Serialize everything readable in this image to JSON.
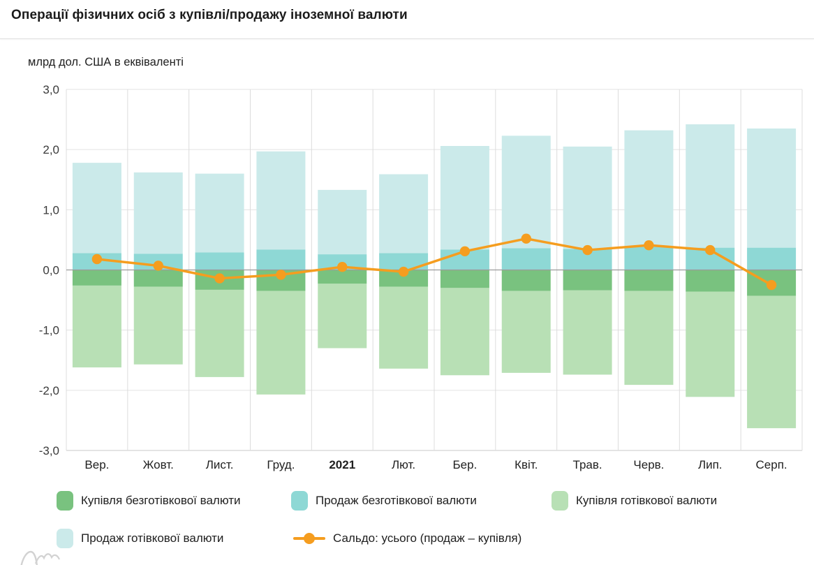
{
  "header": {
    "title": "Операції фізичних осіб з купівлі/продажу іноземної валюти"
  },
  "y_axis_note": "млрд дол. США в еквіваленті",
  "legend": {
    "items": [
      {
        "label": "Купівля безготівкової валюти",
        "color": "#79c27f",
        "marker": "swatch"
      },
      {
        "label": "Продаж безготівкової валюти",
        "color": "#8ed8d5",
        "marker": "swatch"
      },
      {
        "label": "Купівля готівкової валюти",
        "color": "#b8e0b5",
        "marker": "swatch"
      },
      {
        "label": "Продаж готівкової валюти",
        "color": "#cbeaea",
        "marker": "swatch"
      },
      {
        "label": "Сальдо: усього (продаж – купівля)",
        "color": "#f59d1f",
        "marker": "line-dot"
      }
    ]
  },
  "chart_data": {
    "type": "bar",
    "subtype": "stacked-diverging-with-line-overlay",
    "title": "Операції фізичних осіб з купівлі/продажу іноземної валюти",
    "ylabel": "млрд дол. США в еквіваленті",
    "xlabel": "",
    "grid": true,
    "legend_position": "bottom",
    "ylim": [
      -3,
      3
    ],
    "y_tick_values": [
      3,
      2,
      1,
      0,
      -1,
      -2,
      -3
    ],
    "y_tick_labels": [
      "3,0",
      "2,0",
      "1,0",
      "0,0",
      "-1,0",
      "-2,0",
      "-3,0"
    ],
    "categories": [
      "Вер.",
      "Жовт.",
      "Лист.",
      "Груд.",
      "2021",
      "Лют.",
      "Бер.",
      "Квіт.",
      "Трав.",
      "Черв.",
      "Лип.",
      "Серп."
    ],
    "emphasized_category": "2021",
    "series": [
      {
        "name": "Продаж безготівкової валюти",
        "type": "bar",
        "direction": "up",
        "stack_order": 1,
        "color": "#8ed8d5",
        "values": [
          0.28,
          0.27,
          0.29,
          0.34,
          0.26,
          0.28,
          0.34,
          0.36,
          0.35,
          0.39,
          0.37,
          0.37
        ]
      },
      {
        "name": "Продаж готівкової валюти",
        "type": "bar",
        "direction": "up",
        "stack_order": 2,
        "color": "#cbeaea",
        "values": [
          1.5,
          1.35,
          1.31,
          1.63,
          1.07,
          1.31,
          1.72,
          1.87,
          1.7,
          1.93,
          2.05,
          1.98
        ]
      },
      {
        "name": "Купівля безготівкової валюти",
        "type": "bar",
        "direction": "down",
        "stack_order": 1,
        "color": "#79c27f",
        "values": [
          0.26,
          0.28,
          0.33,
          0.35,
          0.23,
          0.28,
          0.3,
          0.35,
          0.34,
          0.35,
          0.36,
          0.43
        ]
      },
      {
        "name": "Купівля готівкової валюти",
        "type": "bar",
        "direction": "down",
        "stack_order": 2,
        "color": "#b8e0b5",
        "values": [
          1.36,
          1.29,
          1.45,
          1.72,
          1.07,
          1.36,
          1.45,
          1.36,
          1.4,
          1.56,
          1.75,
          2.2
        ]
      },
      {
        "name": "Сальдо: усього (продаж – купівля)",
        "type": "line",
        "color": "#f59d1f",
        "values": [
          0.18,
          0.07,
          -0.14,
          -0.08,
          0.05,
          -0.03,
          0.31,
          0.52,
          0.33,
          0.41,
          0.33,
          -0.25
        ]
      }
    ]
  }
}
